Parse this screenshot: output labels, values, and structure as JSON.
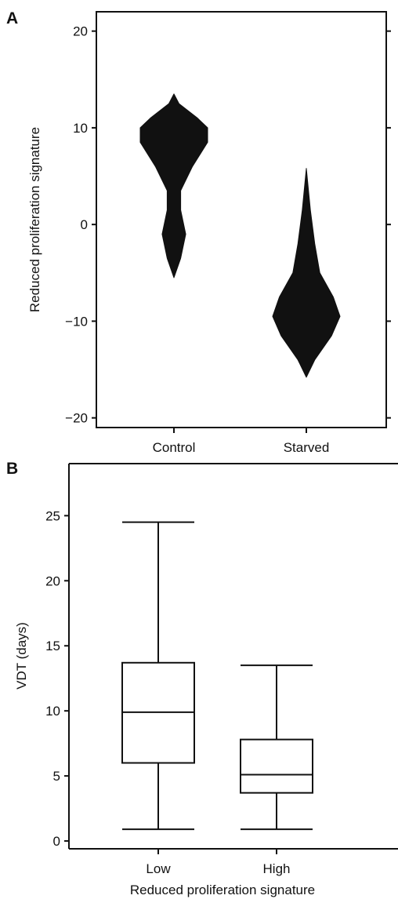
{
  "chart_data": [
    {
      "panel": "A",
      "type": "violin",
      "title": "",
      "xlabel": "",
      "ylabel": "Reduced proliferation signature",
      "ylim": [
        -21,
        22
      ],
      "yticks": [
        20,
        10,
        0,
        -10,
        -20
      ],
      "ytick_labels": [
        "20",
        "10",
        "0",
        "−10",
        "−20"
      ],
      "categories": [
        "Control",
        "Starved"
      ],
      "series": [
        {
          "category": "Control",
          "color": "#111111",
          "profile": [
            {
              "y": -5.5,
              "w": 0.0
            },
            {
              "y": -3.5,
              "w": 0.2
            },
            {
              "y": -1.0,
              "w": 0.35
            },
            {
              "y": 1.5,
              "w": 0.2
            },
            {
              "y": 3.5,
              "w": 0.2
            },
            {
              "y": 6.0,
              "w": 0.55
            },
            {
              "y": 8.5,
              "w": 1.0
            },
            {
              "y": 10.0,
              "w": 1.0
            },
            {
              "y": 11.0,
              "w": 0.7
            },
            {
              "y": 12.5,
              "w": 0.15
            },
            {
              "y": 13.5,
              "w": 0.0
            }
          ]
        },
        {
          "category": "Starved",
          "color": "#111111",
          "profile": [
            {
              "y": -15.8,
              "w": 0.0
            },
            {
              "y": -14.0,
              "w": 0.25
            },
            {
              "y": -11.5,
              "w": 0.75
            },
            {
              "y": -9.5,
              "w": 1.0
            },
            {
              "y": -7.5,
              "w": 0.8
            },
            {
              "y": -5.0,
              "w": 0.4
            },
            {
              "y": -2.0,
              "w": 0.25
            },
            {
              "y": 1.5,
              "w": 0.12
            },
            {
              "y": 5.8,
              "w": 0.0
            }
          ]
        }
      ]
    },
    {
      "panel": "B",
      "type": "box",
      "title": "",
      "xlabel": "Reduced proliferation signature",
      "ylabel": "VDT (days)",
      "ylim": [
        -0.6,
        29
      ],
      "yticks": [
        0,
        5,
        10,
        15,
        20,
        25
      ],
      "ytick_labels": [
        "0",
        "5",
        "10",
        "15",
        "20",
        "25"
      ],
      "categories": [
        "Low",
        "High"
      ],
      "series": [
        {
          "category": "Low",
          "min": 0.9,
          "q1": 6.0,
          "median": 9.9,
          "q3": 13.7,
          "max": 24.5
        },
        {
          "category": "High",
          "min": 0.9,
          "q1": 3.7,
          "median": 5.1,
          "q3": 7.8,
          "max": 13.5
        }
      ]
    }
  ]
}
